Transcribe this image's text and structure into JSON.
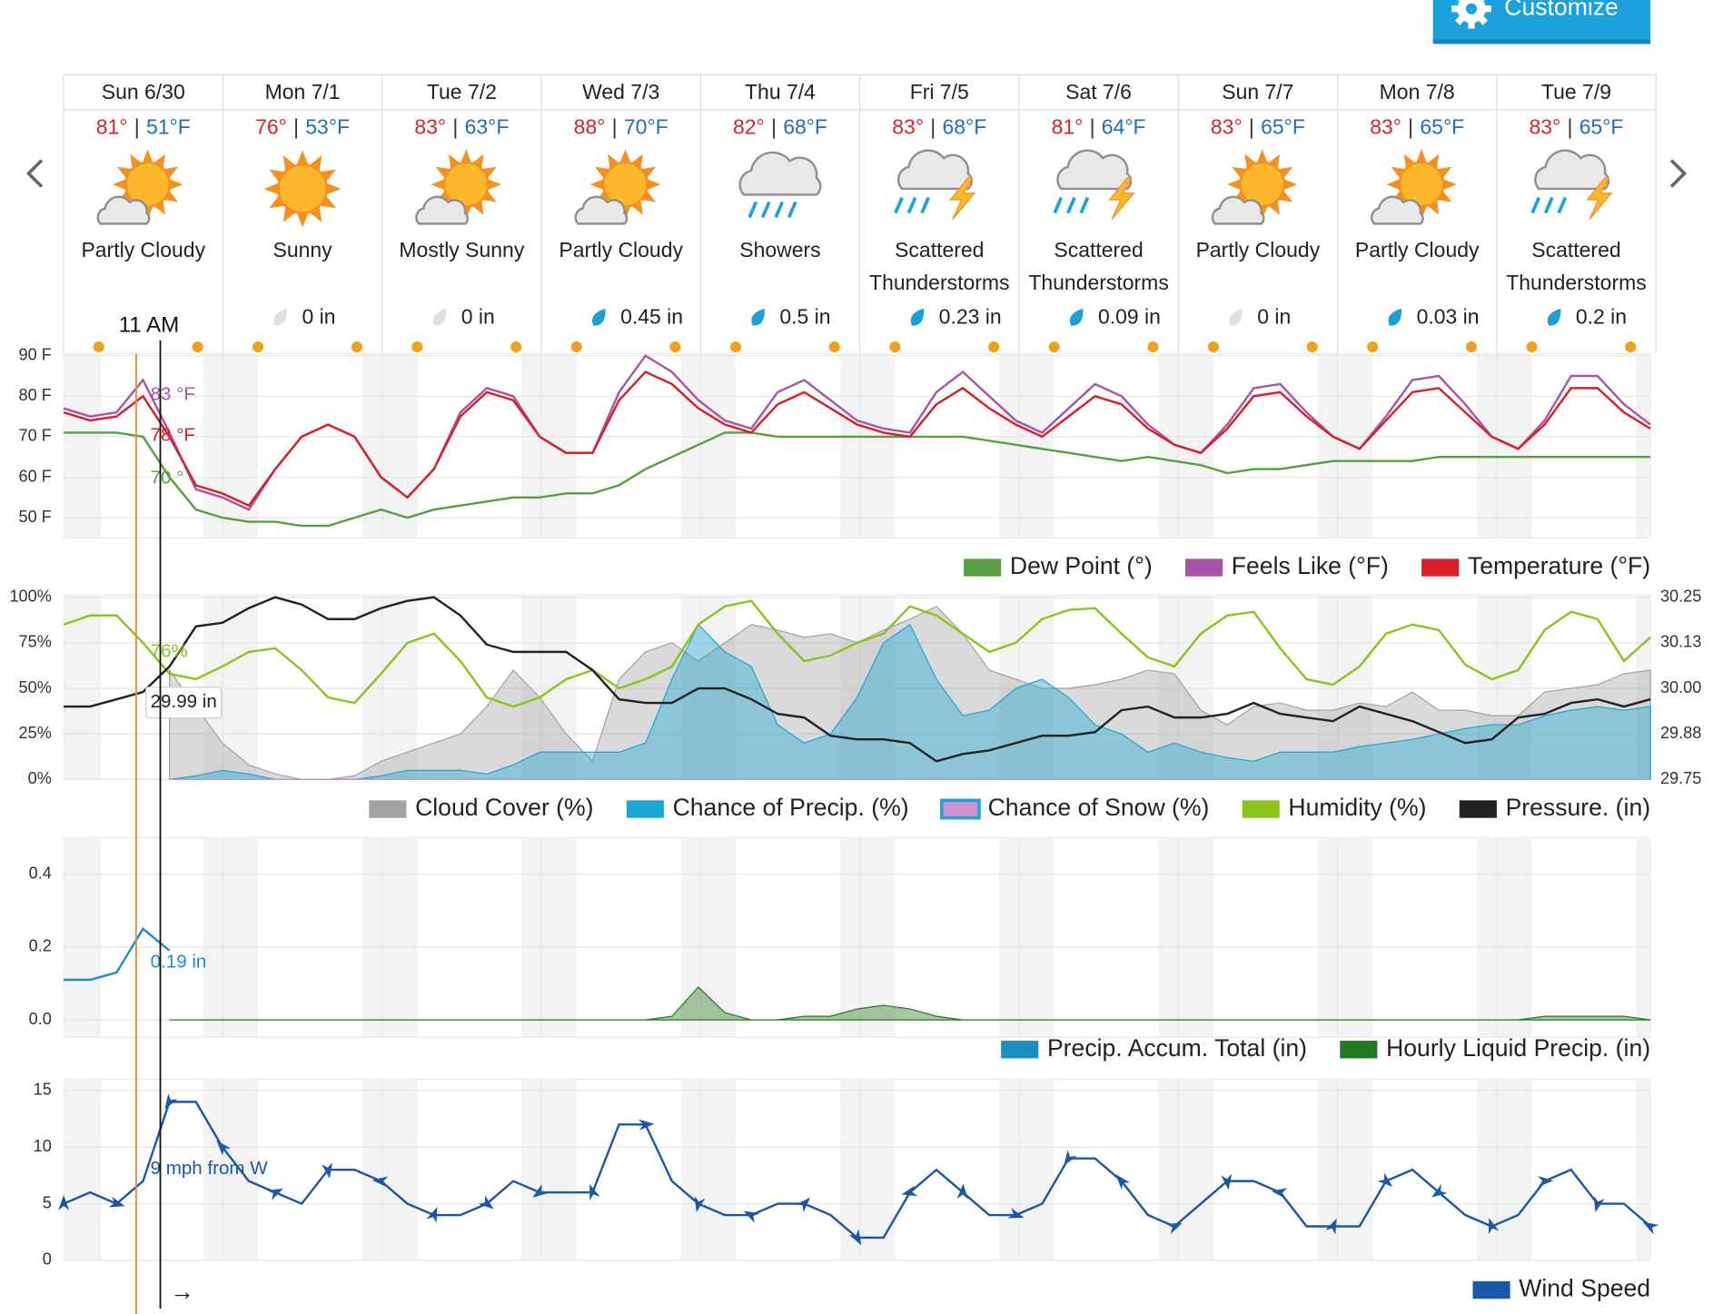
{
  "customize_button": "Customize",
  "temp_separator": "|",
  "days": [
    {
      "date": "Sun 6/30",
      "high": "81°",
      "low": "51°F",
      "condition": "Partly Cloudy",
      "precip": null,
      "precip_label": null
    },
    {
      "date": "Mon 7/1",
      "high": "76°",
      "low": "53°F",
      "condition": "Sunny",
      "precip": 0,
      "precip_label": "0 in"
    },
    {
      "date": "Tue 7/2",
      "high": "83°",
      "low": "63°F",
      "condition": "Mostly Sunny",
      "precip": 0,
      "precip_label": "0 in"
    },
    {
      "date": "Wed 7/3",
      "high": "88°",
      "low": "70°F",
      "condition": "Partly Cloudy",
      "precip": 0.45,
      "precip_label": "0.45 in"
    },
    {
      "date": "Thu 7/4",
      "high": "82°",
      "low": "68°F",
      "condition": "Showers",
      "precip": 0.5,
      "precip_label": "0.5 in"
    },
    {
      "date": "Fri 7/5",
      "high": "83°",
      "low": "68°F",
      "condition": "Scattered Thunderstorms",
      "precip": 0.23,
      "precip_label": "0.23 in"
    },
    {
      "date": "Sat 7/6",
      "high": "81°",
      "low": "64°F",
      "condition": "Scattered Thunderstorms",
      "precip": 0.09,
      "precip_label": "0.09 in"
    },
    {
      "date": "Sun 7/7",
      "high": "83°",
      "low": "65°F",
      "condition": "Partly Cloudy",
      "precip": 0,
      "precip_label": "0 in"
    },
    {
      "date": "Mon 7/8",
      "high": "83°",
      "low": "65°F",
      "condition": "Partly Cloudy",
      "precip": 0.03,
      "precip_label": "0.03 in"
    },
    {
      "date": "Tue 7/9",
      "high": "83°",
      "low": "65°F",
      "condition": "Scattered Thunderstorms",
      "precip": 0.2,
      "precip_label": "0.2 in"
    }
  ],
  "cursor": {
    "time": "11 AM",
    "arrow": "→"
  },
  "chart_data": [
    {
      "type": "line",
      "ylim": [
        45,
        90
      ],
      "grid": true,
      "yticks": [
        {
          "value": 90,
          "label": "90 F"
        },
        {
          "value": 80,
          "label": "80 F"
        },
        {
          "value": 70,
          "label": "70 F"
        },
        {
          "value": 60,
          "label": "60 F"
        },
        {
          "value": 50,
          "label": "50 F"
        }
      ],
      "annotations": [
        "83 °F",
        "78 °F",
        "70 °"
      ],
      "series": [
        {
          "name": "Dew Point (°)",
          "color": "#5a9e44",
          "style": "line",
          "values": [
            71,
            71,
            71,
            70,
            60,
            52,
            50,
            49,
            49,
            48,
            48,
            50,
            52,
            50,
            52,
            53,
            54,
            55,
            55,
            56,
            56,
            58,
            62,
            65,
            68,
            71,
            71,
            70,
            70,
            70,
            70,
            70,
            70,
            70,
            70,
            69,
            68,
            67,
            66,
            65,
            64,
            65,
            64,
            63,
            61,
            62,
            62,
            63,
            64,
            64,
            64,
            64,
            65,
            65,
            65,
            65,
            65,
            65,
            65,
            65,
            65
          ]
        },
        {
          "name": "Feels Like (°F)",
          "color": "#a855a8",
          "style": "line",
          "values": [
            77,
            75,
            76,
            84,
            71,
            57,
            55,
            52,
            62,
            70,
            73,
            70,
            60,
            55,
            62,
            76,
            82,
            80,
            70,
            66,
            66,
            81,
            90,
            86,
            79,
            74,
            72,
            81,
            84,
            79,
            74,
            72,
            71,
            81,
            86,
            80,
            74,
            71,
            77,
            83,
            80,
            73,
            68,
            66,
            73,
            82,
            83,
            76,
            70,
            67,
            75,
            84,
            85,
            78,
            70,
            67,
            74,
            85,
            85,
            78,
            73
          ]
        },
        {
          "name": "Temperature (°F)",
          "color": "#d91e2a",
          "style": "line",
          "values": [
            76,
            74,
            75,
            80,
            70,
            58,
            56,
            53,
            62,
            70,
            73,
            70,
            60,
            55,
            62,
            75,
            81,
            79,
            70,
            66,
            66,
            79,
            86,
            83,
            77,
            73,
            71,
            78,
            81,
            77,
            73,
            71,
            70,
            78,
            82,
            77,
            73,
            70,
            75,
            80,
            78,
            72,
            68,
            66,
            72,
            80,
            81,
            75,
            70,
            67,
            74,
            81,
            82,
            76,
            70,
            67,
            73,
            82,
            82,
            76,
            72
          ]
        }
      ]
    },
    {
      "type": "area",
      "ylim": [
        0,
        100
      ],
      "y2lim": [
        29.75,
        30.25
      ],
      "grid": true,
      "yticks": [
        {
          "value": 100,
          "label": "100%"
        },
        {
          "value": 75,
          "label": "75%"
        },
        {
          "value": 50,
          "label": "50%"
        },
        {
          "value": 25,
          "label": "25%"
        },
        {
          "value": 0,
          "label": "0%"
        }
      ],
      "y2ticks": [
        30.25,
        {
          "value": 30.125,
          "label": "30.13"
        },
        {
          "value": 30,
          "label": "30.00"
        },
        {
          "value": 29.875,
          "label": "29.88"
        },
        29.75
      ],
      "annotations": [
        "76%",
        "29.99 in"
      ],
      "series": [
        {
          "name": "Cloud Cover (%)",
          "color": "#a3a3a3",
          "style": "area",
          "values": [
            null,
            null,
            null,
            null,
            60,
            40,
            20,
            8,
            3,
            0,
            0,
            2,
            10,
            15,
            20,
            25,
            40,
            60,
            45,
            25,
            10,
            55,
            70,
            75,
            65,
            75,
            85,
            82,
            78,
            80,
            75,
            82,
            88,
            95,
            80,
            60,
            55,
            50,
            50,
            52,
            55,
            60,
            58,
            38,
            30,
            40,
            42,
            38,
            38,
            42,
            40,
            48,
            38,
            38,
            35,
            35,
            48,
            50,
            52,
            58,
            60
          ]
        },
        {
          "name": "Chance of Precip. (%)",
          "color": "#1aa7d8",
          "style": "area",
          "values": [
            null,
            null,
            null,
            null,
            0,
            2,
            5,
            3,
            0,
            0,
            0,
            0,
            2,
            5,
            5,
            5,
            3,
            8,
            15,
            15,
            15,
            15,
            20,
            55,
            85,
            70,
            62,
            30,
            20,
            25,
            45,
            75,
            85,
            55,
            35,
            38,
            50,
            55,
            45,
            30,
            25,
            15,
            20,
            15,
            12,
            10,
            15,
            15,
            15,
            18,
            20,
            22,
            25,
            28,
            30,
            30,
            35,
            38,
            40,
            38,
            40
          ]
        },
        {
          "name": "Chance of Snow (%)",
          "color": "#d48fcf",
          "style": "area",
          "values": [
            null,
            null,
            null,
            null,
            0,
            0,
            0,
            0,
            0,
            0,
            0,
            0,
            0,
            0,
            0,
            0,
            0,
            0,
            0,
            0,
            0,
            0,
            0,
            0,
            0,
            0,
            0,
            0,
            0,
            0,
            0,
            0,
            0,
            0,
            0,
            0,
            0,
            0,
            0,
            0,
            0,
            0,
            0,
            0,
            0,
            0,
            0,
            0,
            0,
            0,
            0,
            0,
            0,
            0,
            0,
            0,
            0,
            0,
            0,
            0,
            0
          ]
        },
        {
          "name": "Humidity (%)",
          "color": "#8bc41a",
          "style": "line",
          "values": [
            85,
            90,
            90,
            75,
            58,
            55,
            62,
            70,
            72,
            60,
            45,
            42,
            58,
            75,
            80,
            65,
            45,
            40,
            45,
            55,
            60,
            50,
            55,
            62,
            85,
            95,
            98,
            80,
            65,
            68,
            75,
            80,
            95,
            90,
            80,
            70,
            75,
            88,
            93,
            94,
            80,
            67,
            62,
            80,
            90,
            92,
            72,
            55,
            52,
            62,
            80,
            85,
            82,
            63,
            55,
            60,
            82,
            92,
            88,
            65,
            78
          ]
        },
        {
          "name": "Pressure. (in)",
          "color": "#222222",
          "style": "line",
          "axis": "y2",
          "values": [
            29.95,
            29.95,
            29.97,
            29.99,
            30.06,
            30.17,
            30.18,
            30.22,
            30.25,
            30.23,
            30.19,
            30.19,
            30.22,
            30.24,
            30.25,
            30.2,
            30.12,
            30.1,
            30.1,
            30.1,
            30.05,
            29.97,
            29.96,
            29.96,
            30,
            30,
            29.97,
            29.93,
            29.92,
            29.87,
            29.86,
            29.86,
            29.85,
            29.8,
            29.82,
            29.83,
            29.85,
            29.87,
            29.87,
            29.88,
            29.94,
            29.95,
            29.92,
            29.92,
            29.93,
            29.96,
            29.93,
            29.92,
            29.91,
            29.95,
            29.93,
            29.91,
            29.88,
            29.85,
            29.86,
            29.92,
            29.93,
            29.96,
            29.97,
            29.95,
            29.97
          ]
        }
      ]
    },
    {
      "type": "area",
      "ylim": [
        0,
        0.5
      ],
      "grid": true,
      "yticks": [
        0.4,
        0.2,
        {
          "value": 0,
          "label": "0.0"
        }
      ],
      "annotations": [
        "0.19 in"
      ],
      "series": [
        {
          "name": "Precip. Accum. Total (in)",
          "color": "#1a8fc2",
          "style": "line",
          "values": [
            0.11,
            0.11,
            0.13,
            0.25,
            0.19,
            null,
            null,
            null,
            null,
            null,
            null,
            null,
            null,
            null,
            null,
            null,
            null,
            null,
            null,
            null,
            null,
            null,
            null,
            null,
            null,
            null,
            null,
            null,
            null,
            null,
            null,
            null,
            null,
            null,
            null,
            null,
            null,
            null,
            null,
            null,
            null,
            null,
            null,
            null,
            null,
            null,
            null,
            null,
            null,
            null,
            null,
            null,
            null,
            null,
            null,
            null,
            null,
            null,
            null,
            null,
            null
          ]
        },
        {
          "name": "Hourly Liquid Precip. (in)",
          "color": "#227a1f",
          "style": "area",
          "values": [
            null,
            null,
            null,
            null,
            0,
            0,
            0,
            0,
            0,
            0,
            0,
            0,
            0,
            0,
            0,
            0,
            0,
            0,
            0,
            0,
            0,
            0,
            0,
            0.01,
            0.09,
            0.02,
            0,
            0,
            0.01,
            0.01,
            0.03,
            0.04,
            0.03,
            0.01,
            0,
            0,
            0,
            0,
            0,
            0,
            0,
            0,
            0,
            0,
            0,
            0,
            0,
            0,
            0,
            0,
            0,
            0,
            0,
            0,
            0,
            0,
            0.01,
            0.01,
            0.01,
            0.01,
            0
          ]
        }
      ]
    },
    {
      "type": "line",
      "ylim": [
        0,
        16
      ],
      "grid": true,
      "yticks": [
        15,
        10,
        5,
        0
      ],
      "annotations": [
        "9 mph from W"
      ],
      "series": [
        {
          "name": "Wind Speed",
          "color": "#1b57a8",
          "style": "line",
          "values": [
            5,
            6,
            5,
            7,
            14,
            14,
            10,
            7,
            6,
            5,
            8,
            8,
            7,
            5,
            4,
            4,
            5,
            7,
            6,
            6,
            6,
            12,
            12,
            7,
            5,
            4,
            4,
            5,
            5,
            4,
            2,
            2,
            6,
            8,
            6,
            4,
            4,
            5,
            9,
            9,
            7,
            4,
            3,
            5,
            7,
            7,
            6,
            3,
            3,
            3,
            7,
            8,
            6,
            4,
            3,
            4,
            7,
            8,
            5,
            5,
            3
          ]
        }
      ]
    }
  ]
}
